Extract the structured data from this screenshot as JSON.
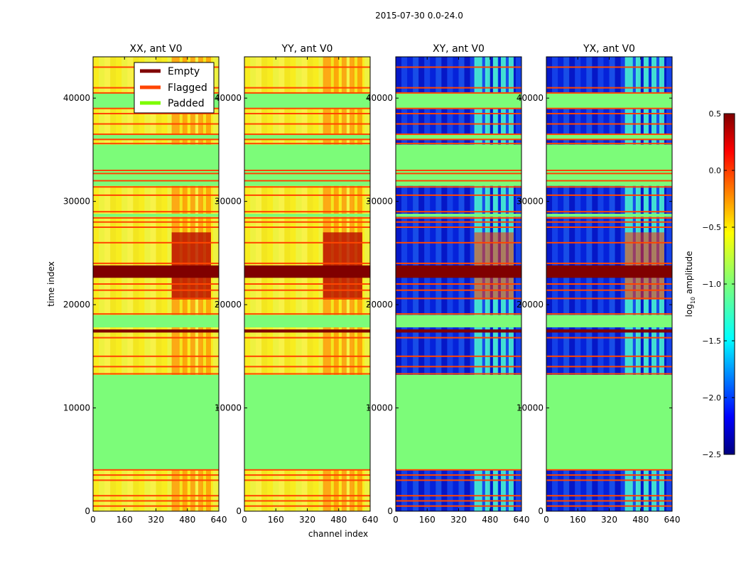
{
  "chart_data": {
    "type": "heatmap",
    "suptitle": "2015-07-30 0.0-24.0",
    "xlabel": "channel index",
    "ylabel": "time index",
    "xlim": [
      0,
      640
    ],
    "ylim": [
      0,
      44000
    ],
    "xticks": [
      0,
      160,
      320,
      480,
      640
    ],
    "xtick_labels": [
      "0",
      "160",
      "320",
      "480",
      "640"
    ],
    "yticks": [
      0,
      10000,
      20000,
      30000,
      40000
    ],
    "ytick_labels": [
      "0",
      "10000",
      "20000",
      "30000",
      "40000"
    ],
    "panels": [
      {
        "title": "XX, ant V0",
        "kind": "parallel"
      },
      {
        "title": "YY, ant V0",
        "kind": "parallel"
      },
      {
        "title": "XY, ant V0",
        "kind": "cross"
      },
      {
        "title": "YX, ant V0",
        "kind": "cross"
      }
    ],
    "legend": {
      "location": "upper-right of first panel",
      "items": [
        {
          "label": "Empty",
          "color": "#800000"
        },
        {
          "label": "Flagged",
          "color": "#ff4500"
        },
        {
          "label": "Padded",
          "color": "#7cfc00"
        }
      ]
    },
    "colorbar": {
      "label_prefix": "log",
      "label_sub": "10",
      "label_suffix": " amplitude",
      "range": [
        -2.5,
        0.5
      ],
      "ticks": [
        0.5,
        0.0,
        -0.5,
        -1.0,
        -1.5,
        -2.0,
        -2.5
      ],
      "tick_labels": [
        "0.5",
        "0.0",
        "−0.5",
        "−1.0",
        "−1.5",
        "−2.0",
        "−2.5"
      ]
    },
    "padded_ranges": [
      [
        4000,
        13200
      ],
      [
        17800,
        19000
      ],
      [
        31500,
        35500
      ],
      [
        36000,
        36500
      ],
      [
        28500,
        28800
      ],
      [
        39000,
        40500
      ]
    ],
    "empty_ranges": [
      [
        22600,
        23800
      ],
      [
        17300,
        17600
      ]
    ],
    "flag_lines": [
      500,
      1000,
      1500,
      3000,
      3500,
      4000,
      13300,
      14000,
      15000,
      16800,
      19100,
      20600,
      21400,
      22000,
      24000,
      26000,
      27500,
      28000,
      28400,
      29000,
      30600,
      31400,
      32000,
      32700,
      33000,
      35600,
      36000,
      36500,
      37500,
      38500,
      39000,
      40500,
      41000,
      43000
    ]
  }
}
